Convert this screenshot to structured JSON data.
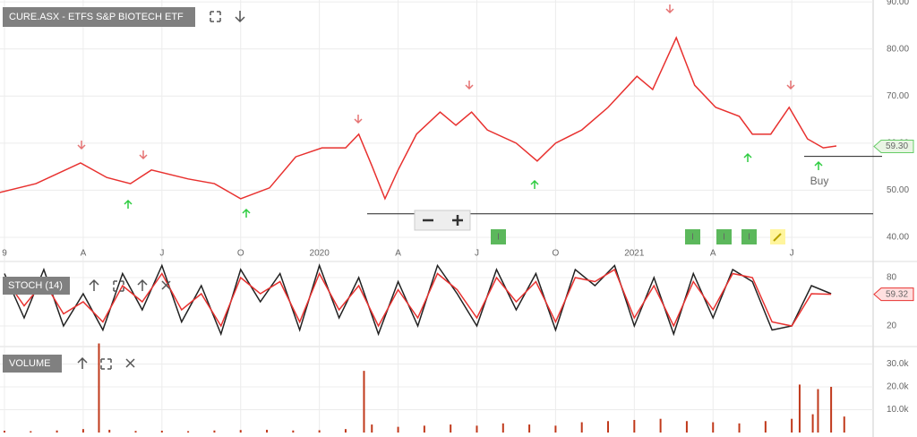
{
  "chart_data": [
    {
      "type": "line",
      "title": "CURE.ASX - ETFS S&P BIOTECH ETF",
      "color": "#e8312f",
      "x": [
        -0.2,
        1.2,
        2.9,
        3.9,
        4.8,
        5.6,
        7.0,
        8.0,
        9.0,
        10.1,
        11.1,
        12.1,
        13.0,
        13.5,
        14.0,
        14.5,
        15.0,
        15.7,
        16.6,
        17.2,
        17.8,
        18.4,
        19.5,
        20.3,
        21.0,
        22.0,
        23.0,
        24.1,
        24.7,
        25.6,
        26.3,
        27.1,
        28.0,
        28.5,
        29.2,
        29.9,
        30.6,
        31.2,
        31.7
      ],
      "values": [
        49.5,
        51.4,
        55.8,
        52.7,
        51.4,
        54.3,
        52.4,
        51.4,
        48.2,
        50.5,
        57.1,
        59.0,
        59.0,
        61.9,
        55.2,
        48.2,
        54.3,
        61.9,
        66.6,
        63.8,
        66.6,
        62.8,
        60.0,
        56.2,
        60.0,
        62.8,
        67.6,
        74.2,
        71.4,
        82.4,
        72.3,
        67.6,
        65.7,
        61.9,
        61.9,
        67.6,
        60.9,
        59.0,
        59.4
      ],
      "xlim": [
        -0.17,
        33.1
      ],
      "xticks": [
        {
          "value": 0,
          "label": "9"
        },
        {
          "value": 3,
          "label": "A"
        },
        {
          "value": 6,
          "label": "J"
        },
        {
          "value": 9,
          "label": "O"
        },
        {
          "value": 12,
          "label": "2020"
        },
        {
          "value": 15,
          "label": "A"
        },
        {
          "value": 18,
          "label": "J"
        },
        {
          "value": 21,
          "label": "O"
        },
        {
          "value": 24,
          "label": "2021"
        },
        {
          "value": 27,
          "label": "A"
        },
        {
          "value": 30,
          "label": "J"
        }
      ],
      "ylim": [
        38.1,
        90.4
      ],
      "yticks": [
        {
          "value": 40,
          "label": "40.00"
        },
        {
          "value": 50,
          "label": "50.00"
        },
        {
          "value": 60,
          "label": "60.00"
        },
        {
          "value": 70,
          "label": "70.00"
        },
        {
          "value": 80,
          "label": "80.00"
        },
        {
          "value": 90,
          "label": "90.00"
        }
      ],
      "hlines": [
        45,
        57.2
      ],
      "last": {
        "value": 59.3,
        "label": "59.30"
      },
      "annotation": "Buy",
      "event_labels": [
        "I",
        "I",
        "I",
        "I"
      ],
      "grid": true
    },
    {
      "type": "line",
      "title": "STOCH (14)",
      "x": [
        0,
        0.75,
        1.5,
        2.25,
        3,
        3.75,
        4.5,
        5.25,
        6,
        6.75,
        7.5,
        8.25,
        9,
        9.75,
        10.5,
        11.25,
        12,
        12.75,
        13.5,
        14.25,
        15,
        15.75,
        16.5,
        17.25,
        18,
        18.75,
        19.5,
        20.25,
        21,
        21.75,
        22.5,
        23.25,
        24,
        24.75,
        25.5,
        26.25,
        27,
        27.75,
        28.5,
        29.25,
        30,
        30.75,
        31.5
      ],
      "series": [
        {
          "color": "#222222",
          "values": [
            85,
            30,
            90,
            20,
            60,
            15,
            85,
            40,
            95,
            25,
            70,
            10,
            90,
            50,
            85,
            15,
            95,
            30,
            80,
            10,
            75,
            20,
            95,
            60,
            20,
            90,
            40,
            85,
            15,
            90,
            70,
            95,
            20,
            80,
            10,
            85,
            30,
            90,
            75,
            15,
            20,
            70,
            60
          ]
        },
        {
          "color": "#e8312f",
          "values": [
            80,
            45,
            75,
            35,
            50,
            25,
            70,
            50,
            85,
            40,
            60,
            20,
            80,
            60,
            75,
            25,
            85,
            40,
            70,
            20,
            65,
            30,
            85,
            65,
            30,
            80,
            50,
            75,
            25,
            80,
            75,
            90,
            30,
            70,
            20,
            75,
            40,
            85,
            80,
            25,
            20,
            60,
            59.32
          ]
        }
      ],
      "xlim": [
        -0.17,
        33.1
      ],
      "ylim": [
        0,
        100
      ],
      "yticks": [
        20,
        80
      ],
      "last": {
        "value": 59.32,
        "label": "59.32"
      },
      "grid": true
    },
    {
      "type": "bar",
      "title": "VOLUME",
      "color": "#c0391b",
      "x": [
        0,
        1,
        2,
        3,
        3.6,
        4,
        5,
        6,
        7,
        8,
        9,
        10,
        11,
        12,
        13,
        13.7,
        14,
        15,
        16,
        17,
        18,
        19,
        20,
        21,
        22,
        23,
        24,
        25,
        26,
        27,
        28,
        29,
        30,
        30.3,
        30.8,
        31,
        31.5,
        32
      ],
      "values": [
        800,
        600,
        900,
        1500,
        39000,
        1200,
        700,
        800,
        600,
        900,
        1100,
        1200,
        900,
        1000,
        1500,
        27000,
        3500,
        2500,
        3000,
        3500,
        3000,
        4000,
        3500,
        3000,
        4500,
        5000,
        5500,
        6000,
        5000,
        4500,
        4000,
        5000,
        6000,
        21000,
        8000,
        19000,
        20000,
        7000
      ],
      "xlim": [
        -0.17,
        33.1
      ],
      "ylim": [
        0,
        34500
      ],
      "yticks": [
        {
          "value": 10000,
          "label": "10.0k"
        },
        {
          "value": 20000,
          "label": "20.0k"
        },
        {
          "value": 30000,
          "label": "30.0k"
        }
      ],
      "grid": true
    }
  ]
}
